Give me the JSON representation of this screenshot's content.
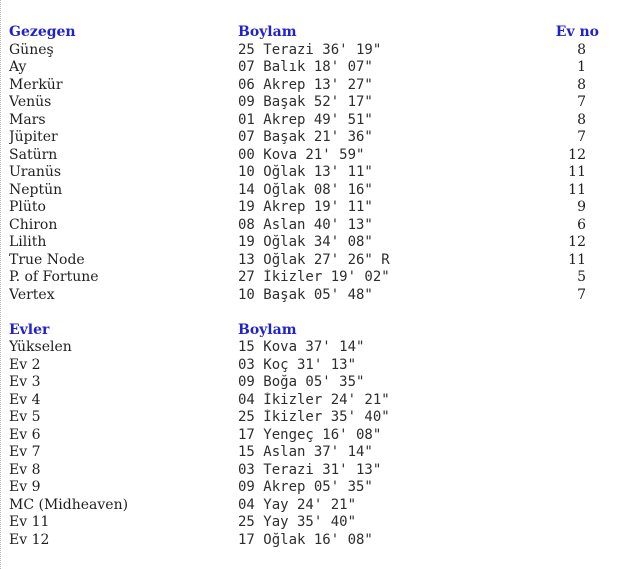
{
  "page": {
    "background": "#ffffff",
    "header_color": "#2222cc",
    "text_color": "#1f1f1f",
    "border_color": "#b4b4b4"
  },
  "planets_table": {
    "headers": {
      "name": "Gezegen",
      "longitude": "Boylam",
      "house": "Ev no"
    },
    "rows": [
      {
        "name": "Güneş",
        "longitude": "25 Terazi 36' 19\"",
        "house": "8"
      },
      {
        "name": "Ay",
        "longitude": "07 Balık 18' 07\"",
        "house": "1"
      },
      {
        "name": "Merkür",
        "longitude": "06 Akrep 13' 27\"",
        "house": "8"
      },
      {
        "name": "Venüs",
        "longitude": "09 Başak 52' 17\"",
        "house": "7"
      },
      {
        "name": "Mars",
        "longitude": "01 Akrep 49' 51\"",
        "house": "8"
      },
      {
        "name": "Jüpiter",
        "longitude": "07 Başak 21' 36\"",
        "house": "7"
      },
      {
        "name": "Satürn",
        "longitude": "00 Kova 21' 59\"",
        "house": "12"
      },
      {
        "name": "Uranüs",
        "longitude": "10 Oğlak 13' 11\"",
        "house": "11"
      },
      {
        "name": "Neptün",
        "longitude": "14 Oğlak 08' 16\"",
        "house": "11"
      },
      {
        "name": "Plüto",
        "longitude": "19 Akrep 19' 11\"",
        "house": "9"
      },
      {
        "name": "Chiron",
        "longitude": "08 Aslan 40' 13\"",
        "house": "6"
      },
      {
        "name": "Lilith",
        "longitude": "19 Oğlak 34' 08\"",
        "house": "12"
      },
      {
        "name": "True Node",
        "longitude": "13 Oğlak 27' 26\" R",
        "house": "11"
      },
      {
        "name": "P. of Fortune",
        "longitude": "27 İkizler 19' 02\"",
        "house": "5"
      },
      {
        "name": "Vertex",
        "longitude": "10 Başak 05' 48\"",
        "house": "7"
      }
    ]
  },
  "houses_table": {
    "headers": {
      "name": "Evler",
      "longitude": "Boylam"
    },
    "rows": [
      {
        "name": "Yükselen",
        "longitude": "15 Kova 37' 14\""
      },
      {
        "name": "Ev 2",
        "longitude": "03 Koç 31' 13\""
      },
      {
        "name": "Ev 3",
        "longitude": "09 Boğa 05' 35\""
      },
      {
        "name": "Ev 4",
        "longitude": "04 İkizler 24' 21\""
      },
      {
        "name": "Ev 5",
        "longitude": "25 İkizler 35' 40\""
      },
      {
        "name": "Ev 6",
        "longitude": "17 Yengeç 16' 08\""
      },
      {
        "name": "Ev 7",
        "longitude": "15 Aslan 37' 14\""
      },
      {
        "name": "Ev 8",
        "longitude": "03 Terazi 31' 13\""
      },
      {
        "name": "Ev 9",
        "longitude": "09 Akrep 05' 35\""
      },
      {
        "name": "MC (Midheaven)",
        "longitude": "04 Yay 24' 21\""
      },
      {
        "name": "Ev 11",
        "longitude": "25 Yay 35' 40\""
      },
      {
        "name": "Ev 12",
        "longitude": "17 Oğlak 16' 08\""
      }
    ]
  }
}
